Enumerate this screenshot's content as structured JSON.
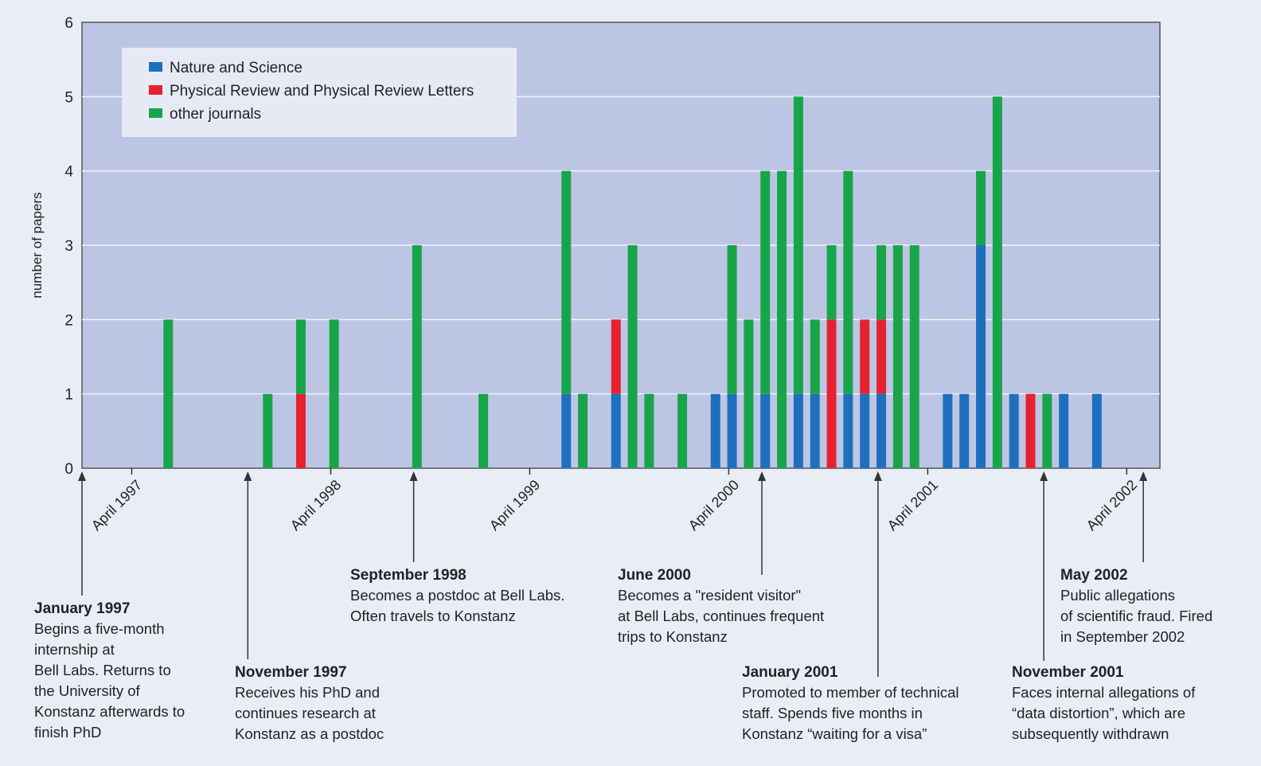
{
  "chart_data": {
    "type": "stacked-bar",
    "y_label": "number of papers",
    "x": [
      "1997-06",
      "1997-12",
      "1998-02",
      "1998-04",
      "1998-09",
      "1999-01",
      "1999-06",
      "1999-07",
      "1999-09",
      "1999-10",
      "1999-11",
      "2000-01",
      "2000-03",
      "2000-04",
      "2000-05",
      "2000-06",
      "2000-07",
      "2000-08",
      "2000-09",
      "2000-10",
      "2000-11",
      "2000-12",
      "2001-01",
      "2001-02",
      "2001-03",
      "2001-05",
      "2001-06",
      "2001-07",
      "2001-08",
      "2001-09",
      "2001-10",
      "2001-11",
      "2001-12",
      "2002-02"
    ],
    "series": [
      {
        "name": "Nature and Science",
        "color": "#1f6fbf",
        "values": [
          0,
          0,
          0,
          0,
          0,
          0,
          1,
          0,
          1,
          0,
          0,
          0,
          1,
          1,
          0,
          1,
          0,
          1,
          1,
          0,
          1,
          1,
          1,
          0,
          0,
          1,
          1,
          3,
          0,
          1,
          0,
          0,
          1,
          1
        ]
      },
      {
        "name": "Physical Review and Physical Review Letters",
        "color": "#e52330",
        "values": [
          0,
          0,
          1,
          0,
          0,
          0,
          0,
          0,
          1,
          0,
          0,
          0,
          0,
          0,
          0,
          0,
          0,
          0,
          0,
          2,
          0,
          1,
          1,
          0,
          0,
          0,
          0,
          0,
          0,
          0,
          1,
          0,
          0,
          0
        ]
      },
      {
        "name": "other journals",
        "color": "#18a54a",
        "values": [
          2,
          1,
          1,
          2,
          3,
          1,
          3,
          1,
          0,
          3,
          1,
          1,
          0,
          2,
          2,
          3,
          4,
          4,
          1,
          1,
          3,
          0,
          1,
          3,
          3,
          0,
          0,
          1,
          5,
          0,
          0,
          1,
          0,
          0
        ]
      }
    ],
    "xlim": [
      "1997-01",
      "2002-06"
    ],
    "xticks": [
      {
        "value": "1997-04",
        "label": "April 1997"
      },
      {
        "value": "1998-04",
        "label": "April 1998"
      },
      {
        "value": "1999-04",
        "label": "April 1999"
      },
      {
        "value": "2000-04",
        "label": "April 2000"
      },
      {
        "value": "2001-04",
        "label": "April 2001"
      },
      {
        "value": "2002-04",
        "label": "April 2002"
      }
    ],
    "ylim": [
      0,
      6
    ],
    "yticks": [
      0,
      1,
      2,
      3,
      4,
      5,
      6
    ],
    "grid": true,
    "legend": "upper left",
    "annotations": [
      {
        "x": "1997-01",
        "title": "January 1997",
        "lines": [
          "Begins a five-month",
          "internship at",
          "Bell Labs. Returns to",
          "the University of",
          "Konstanz afterwards to",
          "finish PhD"
        ]
      },
      {
        "x": "1997-11",
        "title": "November 1997",
        "lines": [
          "Receives his PhD and",
          "continues research at",
          "Konstanz as a postdoc"
        ]
      },
      {
        "x": "1998-09",
        "title": "September 1998",
        "lines": [
          "Becomes a postdoc at Bell Labs.",
          "Often travels to Konstanz"
        ]
      },
      {
        "x": "2000-06",
        "title": "June 2000",
        "lines": [
          "Becomes a \"resident visitor\"",
          "at Bell Labs, continues frequent",
          "trips to Konstanz"
        ]
      },
      {
        "x": "2001-01",
        "title": "January 2001",
        "lines": [
          "Promoted to member of technical",
          "staff. Spends five months in",
          "Konstanz “waiting for a visa”"
        ]
      },
      {
        "x": "2001-11",
        "title": "November 2001",
        "lines": [
          "Faces internal allegations of",
          "“data distortion”, which are",
          "subsequently withdrawn"
        ]
      },
      {
        "x": "2002-05",
        "title": "May 2002",
        "lines": [
          "Public allegations",
          "of scientific fraud. Fired",
          "in September 2002"
        ]
      }
    ]
  }
}
